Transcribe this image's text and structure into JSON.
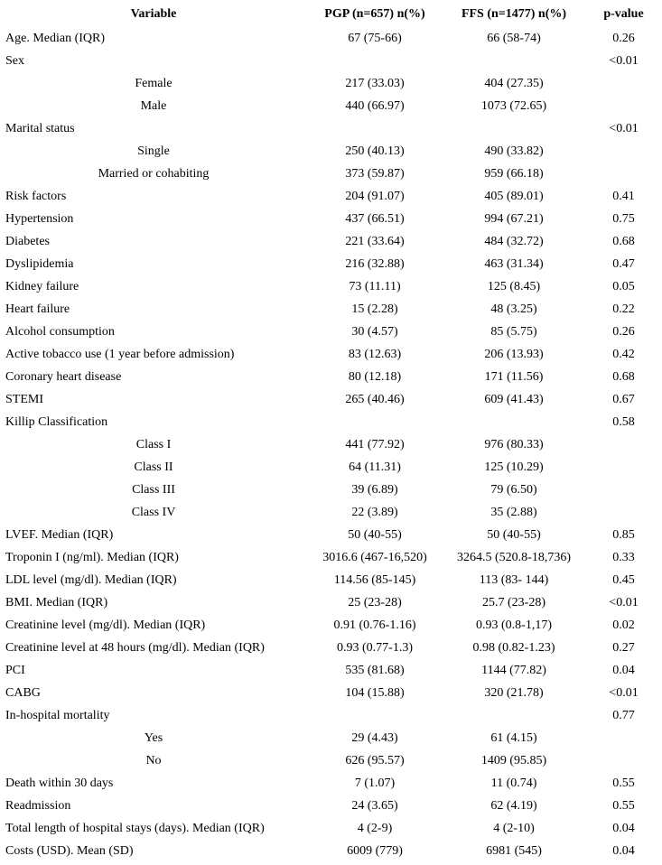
{
  "table": {
    "headers": [
      "Variable",
      "PGP (n=657) n(%)",
      "FFS (n=1477) n(%)",
      "p-value"
    ],
    "rows": [
      {
        "variable": "Age. Median (IQR)",
        "indent": false,
        "pgp": "67 (75-66)",
        "ffs": "66 (58-74)",
        "p": "0.26"
      },
      {
        "variable": "Sex",
        "indent": false,
        "pgp": "",
        "ffs": "",
        "p": "<0.01"
      },
      {
        "variable": "Female",
        "indent": true,
        "pgp": "217 (33.03)",
        "ffs": "404 (27.35)",
        "p": ""
      },
      {
        "variable": "Male",
        "indent": true,
        "pgp": "440 (66.97)",
        "ffs": "1073 (72.65)",
        "p": ""
      },
      {
        "variable": "Marital status",
        "indent": false,
        "pgp": "",
        "ffs": "",
        "p": "<0.01"
      },
      {
        "variable": "Single",
        "indent": true,
        "pgp": "250 (40.13)",
        "ffs": "490 (33.82)",
        "p": ""
      },
      {
        "variable": "Married or cohabiting",
        "indent": true,
        "pgp": "373 (59.87)",
        "ffs": "959 (66.18)",
        "p": ""
      },
      {
        "variable": "Risk factors",
        "indent": false,
        "pgp": "204 (91.07)",
        "ffs": "405 (89.01)",
        "p": "0.41"
      },
      {
        "variable": "Hypertension",
        "indent": false,
        "pgp": "437 (66.51)",
        "ffs": "994 (67.21)",
        "p": "0.75"
      },
      {
        "variable": "Diabetes",
        "indent": false,
        "pgp": "221 (33.64)",
        "ffs": "484 (32.72)",
        "p": "0.68"
      },
      {
        "variable": "Dyslipidemia",
        "indent": false,
        "pgp": "216 (32.88)",
        "ffs": "463 (31.34)",
        "p": "0.47"
      },
      {
        "variable": "Kidney failure",
        "indent": false,
        "pgp": "73 (11.11)",
        "ffs": "125 (8.45)",
        "p": "0.05"
      },
      {
        "variable": "Heart failure",
        "indent": false,
        "pgp": "15 (2.28)",
        "ffs": "48 (3.25)",
        "p": "0.22"
      },
      {
        "variable": "Alcohol consumption",
        "indent": false,
        "pgp": "30 (4.57)",
        "ffs": "85 (5.75)",
        "p": "0.26"
      },
      {
        "variable": "Active tobacco use (1 year before admission)",
        "indent": false,
        "pgp": "83 (12.63)",
        "ffs": "206 (13.93)",
        "p": "0.42"
      },
      {
        "variable": "Coronary heart disease",
        "indent": false,
        "pgp": "80 (12.18)",
        "ffs": "171 (11.56)",
        "p": "0.68"
      },
      {
        "variable": "STEMI",
        "indent": false,
        "pgp": "265 (40.46)",
        "ffs": "609 (41.43)",
        "p": "0.67"
      },
      {
        "variable": "Killip Classification",
        "indent": false,
        "pgp": "",
        "ffs": "",
        "p": "0.58"
      },
      {
        "variable": "Class I",
        "indent": true,
        "pgp": "441 (77.92)",
        "ffs": "976 (80.33)",
        "p": ""
      },
      {
        "variable": "Class II",
        "indent": true,
        "pgp": "64 (11.31)",
        "ffs": "125 (10.29)",
        "p": ""
      },
      {
        "variable": "Class III",
        "indent": true,
        "pgp": "39 (6.89)",
        "ffs": "79 (6.50)",
        "p": ""
      },
      {
        "variable": "Class IV",
        "indent": true,
        "pgp": "22 (3.89)",
        "ffs": "35 (2.88)",
        "p": ""
      },
      {
        "variable": "LVEF. Median (IQR)",
        "indent": false,
        "pgp": "50 (40-55)",
        "ffs": "50 (40-55)",
        "p": "0.85"
      },
      {
        "variable": "Troponin I (ng/ml). Median (IQR)",
        "indent": false,
        "pgp": "3016.6 (467-16,520)",
        "ffs": "3264.5 (520.8-18,736)",
        "p": "0.33"
      },
      {
        "variable": "LDL level (mg/dl). Median (IQR)",
        "indent": false,
        "pgp": "114.56 (85-145)",
        "ffs": "113 (83- 144)",
        "p": "0.45"
      },
      {
        "variable": "BMI. Median (IQR)",
        "indent": false,
        "pgp": "25 (23-28)",
        "ffs": "25.7 (23-28)",
        "p": "<0.01"
      },
      {
        "variable": "Creatinine level (mg/dl). Median (IQR)",
        "indent": false,
        "pgp": "0.91 (0.76-1.16)",
        "ffs": "0.93 (0.8-1,17)",
        "p": "0.02"
      },
      {
        "variable": "Creatinine level at 48 hours (mg/dl). Median (IQR)",
        "indent": false,
        "pgp": "0.93 (0.77-1.3)",
        "ffs": "0.98 (0.82-1.23)",
        "p": "0.27"
      },
      {
        "variable": "PCI",
        "indent": false,
        "pgp": "535 (81.68)",
        "ffs": "1144 (77.82)",
        "p": "0.04"
      },
      {
        "variable": "CABG",
        "indent": false,
        "pgp": "104 (15.88)",
        "ffs": "320 (21.78)",
        "p": "<0.01"
      },
      {
        "variable": "In-hospital mortality",
        "indent": false,
        "pgp": "",
        "ffs": "",
        "p": "0.77"
      },
      {
        "variable": "Yes",
        "indent": true,
        "pgp": "29 (4.43)",
        "ffs": "61 (4.15)",
        "p": ""
      },
      {
        "variable": "No",
        "indent": true,
        "pgp": "626 (95.57)",
        "ffs": "1409 (95.85)",
        "p": ""
      },
      {
        "variable": "Death within 30 days",
        "indent": false,
        "pgp": "7 (1.07)",
        "ffs": "11 (0.74)",
        "p": "0.55"
      },
      {
        "variable": "Readmission",
        "indent": false,
        "pgp": "24 (3.65)",
        "ffs": "62 (4.19)",
        "p": "0.55"
      },
      {
        "variable": "Total length of hospital stays (days). Median (IQR)",
        "indent": false,
        "pgp": "4 (2-9)",
        "ffs": "4 (2-10)",
        "p": "0.04"
      },
      {
        "variable": "Costs (USD). Mean (SD)",
        "indent": false,
        "pgp": "6009 (779)",
        "ffs": "6981 (545)",
        "p": "0.04"
      }
    ]
  }
}
